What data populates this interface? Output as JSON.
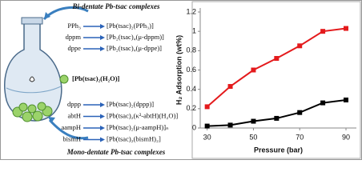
{
  "diagram": {
    "top_title": "Bi-dentate Pb-tsac complexes",
    "bottom_title": "Mono-dentate Pb-tsac complexes",
    "center_label": "[Pb(tsac)₂(H₂O)]",
    "top_rows": [
      [
        "PPh₃",
        "[Pb(tsac)₂(PPh₃)]"
      ],
      [
        "dppm",
        "[Pb₂(tsac)₄(μ-dppm)]"
      ],
      [
        "dppe",
        "[Pb₂(tsac)₄(μ-dppe)]"
      ]
    ],
    "bottom_rows": [
      [
        "dppp",
        "[Pb(tsac)₂(dppp)]"
      ],
      [
        "abtH",
        "[Pb(tsac)₂(κ²-abtH)(H₂O)]"
      ],
      [
        "aampH",
        "[Pb(tsac)₂(μ-aampH)]ₙ"
      ],
      [
        "bismH",
        "[Pb(tsac)₂(bismH)₂]"
      ]
    ]
  },
  "chart_data": {
    "type": "line",
    "x": [
      30,
      40,
      50,
      60,
      70,
      80,
      90
    ],
    "series": [
      {
        "color": "#e41a1c",
        "values": [
          0.22,
          0.43,
          0.6,
          0.72,
          0.85,
          1.0,
          1.03
        ]
      },
      {
        "color": "#000000",
        "values": [
          0.02,
          0.03,
          0.07,
          0.1,
          0.16,
          0.26,
          0.29
        ]
      }
    ],
    "xlabel": "Pressure (bar)",
    "ylabel": "H₂ Adsorption (wt%)",
    "xlim": [
      27,
      94.5
    ],
    "xticks": [
      30,
      50,
      70,
      90
    ],
    "ylim": [
      0,
      1.2
    ],
    "yticks": [
      0,
      0.2,
      0.4,
      0.6,
      0.8,
      1,
      1.2
    ]
  }
}
